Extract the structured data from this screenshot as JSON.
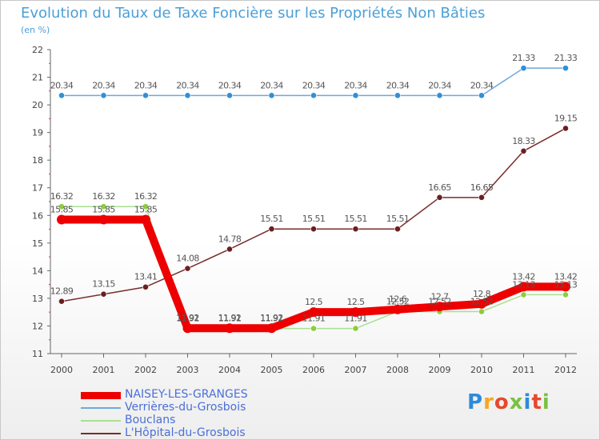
{
  "header": {
    "title": "Evolution du Taux de Taxe Foncière sur les Propriétés Non Bâties",
    "subtitle": "(en %)"
  },
  "logo": {
    "text": "Proxiti",
    "colors": [
      "#2e8bd8",
      "#f5a623",
      "#e8482c",
      "#7ac143",
      "#2e8bd8",
      "#e8482c",
      "#7ac143"
    ]
  },
  "chart_data": {
    "type": "line",
    "title": "Evolution du Taux de Taxe Foncière sur les Propriétés Non Bâties",
    "ylabel": "(en %)",
    "xlabel": "",
    "categories": [
      "2000",
      "2001",
      "2002",
      "2003",
      "2004",
      "2005",
      "2006",
      "2007",
      "2008",
      "2009",
      "2010",
      "2011",
      "2012"
    ],
    "ylim": [
      11,
      22
    ],
    "yticks": [
      "11",
      "12",
      "13",
      "14",
      "15",
      "16",
      "17",
      "18",
      "19",
      "20",
      "21",
      "22"
    ],
    "grid": false,
    "legend_position": "bottom-left",
    "series": [
      {
        "name": "NAISEY-LES-GRANGES",
        "color": "#ee0000",
        "marker_color": "#ee0000",
        "emphasis": "thick",
        "values": [
          15.85,
          15.85,
          15.85,
          11.92,
          11.92,
          11.92,
          12.5,
          12.5,
          12.6,
          12.7,
          12.8,
          13.42,
          13.42
        ],
        "labels": [
          "15.85",
          "15.85",
          "15.85",
          "11.92",
          "11.92",
          "11.92",
          "12.5",
          "12.5",
          "12.6",
          "12.7",
          "12.8",
          "13.42",
          "13.42"
        ]
      },
      {
        "name": "Verrières-du-Grosbois",
        "color": "#6fa8dc",
        "marker_color": "#2f8fd8",
        "emphasis": "normal",
        "values": [
          20.34,
          20.34,
          20.34,
          20.34,
          20.34,
          20.34,
          20.34,
          20.34,
          20.34,
          20.34,
          20.34,
          21.33,
          21.33
        ],
        "labels": [
          "20.34",
          "20.34",
          "20.34",
          "20.34",
          "20.34",
          "20.34",
          "20.34",
          "20.34",
          "20.34",
          "20.34",
          "20.34",
          "21.33",
          "21.33"
        ]
      },
      {
        "name": "Bouclans",
        "color": "#a8e090",
        "marker_color": "#8ccd3c",
        "emphasis": "normal",
        "values": [
          16.32,
          16.32,
          16.32,
          11.91,
          11.91,
          11.91,
          11.91,
          11.91,
          12.52,
          12.52,
          12.52,
          13.13,
          13.13
        ],
        "labels": [
          "16.32",
          "16.32",
          "16.32",
          "11.91",
          "11.91",
          "11.91",
          "11.91",
          "11.91",
          "12.52",
          "12.52",
          "12.52",
          "13.13",
          "13.13"
        ]
      },
      {
        "name": "L'Hôpital-du-Grosbois",
        "color": "#7b2b2b",
        "marker_color": "#6b1f1f",
        "emphasis": "normal",
        "values": [
          12.89,
          13.15,
          13.41,
          14.08,
          14.78,
          15.51,
          15.51,
          15.51,
          15.51,
          16.65,
          16.65,
          18.33,
          19.15
        ],
        "labels": [
          "12.89",
          "13.15",
          "13.41",
          "14.08",
          "14.78",
          "15.51",
          "15.51",
          "15.51",
          "15.51",
          "16.65",
          "16.65",
          "18.33",
          "19.15"
        ]
      }
    ]
  }
}
